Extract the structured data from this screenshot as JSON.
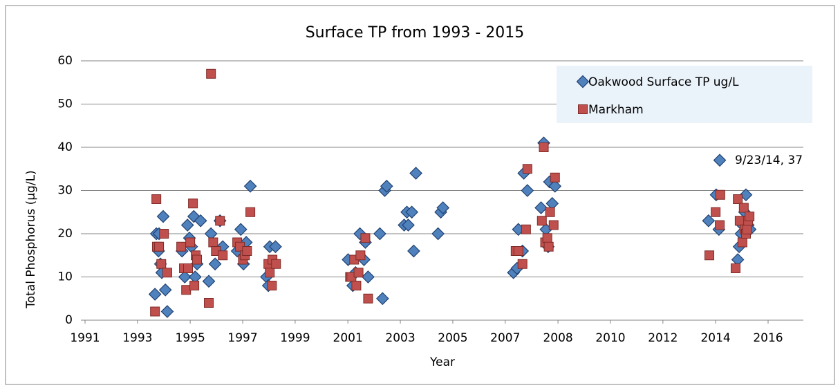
{
  "chart_data": {
    "type": "scatter",
    "title": "Surface TP from 1993 - 2015",
    "xlabel": "Year",
    "ylabel": "Total Phosphorus (µg/L)",
    "xlim": [
      1991,
      2016
    ],
    "ylim": [
      0,
      60
    ],
    "yticks": [
      0,
      10,
      20,
      30,
      40,
      50,
      60
    ],
    "xticks": [
      {
        "value": 1991,
        "label": "1991"
      },
      {
        "value": 1992.92,
        "label": "1993"
      },
      {
        "value": 1994.85,
        "label": "1995"
      },
      {
        "value": 1996.77,
        "label": "1997"
      },
      {
        "value": 1998.69,
        "label": "1999"
      },
      {
        "value": 2000.62,
        "label": "2001"
      },
      {
        "value": 2002.54,
        "label": "2003"
      },
      {
        "value": 2004.46,
        "label": "2005"
      },
      {
        "value": 2006.38,
        "label": "2007"
      },
      {
        "value": 2008.31,
        "label": "2008"
      },
      {
        "value": 2010.23,
        "label": "2010"
      },
      {
        "value": 2012.15,
        "label": "2012"
      },
      {
        "value": 2014.08,
        "label": "2014"
      },
      {
        "value": 2016,
        "label": "2016"
      }
    ],
    "grid": true,
    "legend": "upper right",
    "annotations": [
      {
        "text": "9/23/14, 37",
        "x": 2014.23,
        "y": 37
      }
    ],
    "series": [
      {
        "name": "Oakwood Surface TP ug/L",
        "color": "#4f81bd",
        "marker": "diamond",
        "x": [
          1993.56,
          1993.61,
          1993.69,
          1993.76,
          1993.81,
          1993.86,
          1993.94,
          1994.01,
          1993.71,
          1994.55,
          1994.65,
          1994.75,
          1994.82,
          1994.9,
          1994.98,
          1995.03,
          1995.1,
          1995.23,
          1995.53,
          1995.61,
          1995.76,
          1995.94,
          1996.04,
          1996.57,
          1996.7,
          1996.8,
          1996.9,
          1997.05,
          1997.64,
          1997.71,
          1997.76,
          1997.97,
          2000.63,
          2000.8,
          2000.9,
          2001.06,
          2001.21,
          2001.26,
          2001.36,
          2001.79,
          2001.89,
          2001.97,
          2002.04,
          2002.68,
          2002.78,
          2002.83,
          2002.96,
          2003.03,
          2003.11,
          2003.92,
          2004.02,
          2004.1,
          2006.68,
          2006.81,
          2006.86,
          2007.01,
          2007.06,
          2007.19,
          2007.69,
          2007.79,
          2007.87,
          2007.95,
          2008.0,
          2008.1,
          2008.2,
          2013.82,
          2014.1,
          2014.2,
          2014.23,
          2014.89,
          2014.94,
          2015.01,
          2015.06,
          2015.14,
          2015.19,
          2015.27,
          2015.34
        ],
        "values": [
          6,
          20,
          16,
          13,
          11,
          24,
          7,
          2,
          20,
          16,
          10,
          22,
          19,
          17,
          24,
          10,
          13,
          23,
          9,
          20,
          13,
          23,
          17,
          16,
          21,
          13,
          18,
          31,
          10,
          8,
          17,
          17,
          14,
          8,
          11,
          20,
          14,
          18,
          10,
          20,
          5,
          30,
          31,
          22,
          25,
          22,
          25,
          16,
          34,
          20,
          25,
          26,
          11,
          12,
          21,
          16,
          34,
          30,
          26,
          41,
          21,
          17,
          32,
          27,
          31,
          23,
          29,
          21,
          37,
          14,
          17,
          20,
          22,
          25,
          29,
          22,
          21
        ]
      },
      {
        "name": "Markham",
        "color": "#c0504d",
        "marker": "square",
        "x": [
          1993.56,
          1993.61,
          1993.63,
          1993.71,
          1993.79,
          1993.89,
          1994.01,
          1994.52,
          1994.62,
          1994.7,
          1994.77,
          1994.85,
          1994.95,
          1995.0,
          1995.05,
          1995.1,
          1995.53,
          1995.61,
          1995.69,
          1995.79,
          1995.94,
          1996.04,
          1996.57,
          1996.67,
          1996.78,
          1996.85,
          1996.93,
          1997.05,
          1997.71,
          1997.76,
          1997.84,
          1997.86,
          1997.99,
          2000.7,
          2000.75,
          2000.85,
          2000.93,
          2001.01,
          2001.08,
          2001.26,
          2001.36,
          2006.76,
          2006.86,
          2007.01,
          2007.14,
          2007.19,
          2007.72,
          2007.79,
          2007.84,
          2007.92,
          2007.97,
          2008.02,
          2008.15,
          2008.2,
          2013.85,
          2014.08,
          2014.23,
          2014.25,
          2014.81,
          2014.89,
          2014.96,
          2015.06,
          2015.11,
          2015.14,
          2015.19,
          2015.24,
          2015.27,
          2015.32
        ],
        "values": [
          2,
          28,
          17,
          17,
          13,
          20,
          11,
          17,
          12,
          7,
          12,
          18,
          27,
          8,
          15,
          14,
          4,
          57,
          18,
          16,
          23,
          15,
          18,
          17,
          14,
          15,
          16,
          25,
          13,
          11,
          8,
          14,
          13,
          10,
          10,
          14,
          8,
          11,
          15,
          19,
          5,
          16,
          16,
          13,
          21,
          35,
          23,
          40,
          18,
          19,
          17,
          25,
          22,
          33,
          15,
          25,
          22,
          29,
          12,
          28,
          23,
          18,
          26,
          21,
          20,
          21,
          23,
          24
        ]
      }
    ]
  }
}
